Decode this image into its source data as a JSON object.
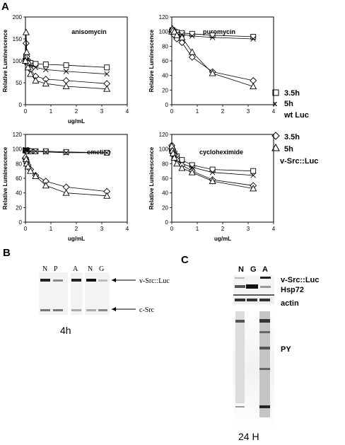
{
  "panel_labels": {
    "a": "A",
    "b": "B",
    "c": "C"
  },
  "legend": {
    "group1": {
      "sym1": "□",
      "lbl1": "3.5h",
      "sym2": "x",
      "lbl2": "5h",
      "name": "wt Luc"
    },
    "group2": {
      "sym1": "◇",
      "lbl1": "3.5h",
      "sym2": "△",
      "lbl2": "5h",
      "name": "v-Src::Luc"
    }
  },
  "colors": {
    "stroke": "#000000",
    "marker_fill": "#ffffff",
    "frame": "#000000"
  },
  "chart_data": [
    {
      "type": "line",
      "title": "anisomycin",
      "xlabel": "ug/mL",
      "ylabel": "Relative Luminescence",
      "xlim": [
        0,
        4
      ],
      "ylim": [
        0,
        200
      ],
      "xticks": [
        "0",
        "1",
        "2",
        "3",
        "4"
      ],
      "yticks": [
        "0",
        "50",
        "100",
        "150",
        "200"
      ],
      "series": [
        {
          "marker": "square",
          "x": [
            0,
            0.025,
            0.05,
            0.1,
            0.2,
            0.4,
            0.8,
            1.6,
            3.2
          ],
          "y": [
            100,
            110,
            100,
            98,
            95,
            93,
            92,
            90,
            85
          ]
        },
        {
          "marker": "x",
          "x": [
            0,
            0.025,
            0.05,
            0.1,
            0.2,
            0.4,
            0.8,
            1.6,
            3.2
          ],
          "y": [
            100,
            105,
            97,
            95,
            90,
            85,
            80,
            76,
            70
          ]
        },
        {
          "marker": "diamond",
          "x": [
            0,
            0.025,
            0.05,
            0.1,
            0.2,
            0.4,
            0.8,
            1.6,
            3.2
          ],
          "y": [
            100,
            140,
            110,
            95,
            80,
            65,
            58,
            55,
            48
          ]
        },
        {
          "marker": "triangle",
          "x": [
            0,
            0.025,
            0.05,
            0.1,
            0.2,
            0.4,
            0.8,
            1.6,
            3.2
          ],
          "y": [
            100,
            165,
            120,
            85,
            70,
            55,
            48,
            42,
            36
          ]
        }
      ]
    },
    {
      "type": "line",
      "title": "puromycin",
      "xlabel": "",
      "ylabel": "Relative Luminescence",
      "xlim": [
        0,
        4
      ],
      "ylim": [
        0,
        120
      ],
      "xticks": [
        "0",
        "1",
        "2",
        "3",
        "4"
      ],
      "yticks": [
        "0",
        "20",
        "40",
        "60",
        "80",
        "100",
        "120"
      ],
      "series": [
        {
          "marker": "square",
          "x": [
            0,
            0.025,
            0.05,
            0.1,
            0.2,
            0.4,
            0.8,
            1.6,
            3.2
          ],
          "y": [
            100,
            102,
            100,
            100,
            99,
            98,
            97,
            95,
            93
          ]
        },
        {
          "marker": "x",
          "x": [
            0,
            0.025,
            0.05,
            0.1,
            0.2,
            0.4,
            0.8,
            1.6,
            3.2
          ],
          "y": [
            100,
            100,
            99,
            98,
            97,
            96,
            94,
            92,
            90
          ]
        },
        {
          "marker": "diamond",
          "x": [
            0,
            0.025,
            0.05,
            0.1,
            0.2,
            0.4,
            0.8,
            1.6,
            3.2
          ],
          "y": [
            100,
            103,
            100,
            95,
            90,
            85,
            65,
            45,
            33
          ]
        },
        {
          "marker": "triangle",
          "x": [
            0,
            0.025,
            0.05,
            0.1,
            0.2,
            0.4,
            0.8,
            1.6,
            3.2
          ],
          "y": [
            100,
            104,
            102,
            100,
            95,
            92,
            72,
            43,
            25
          ]
        }
      ]
    },
    {
      "type": "line",
      "title": "emetine",
      "xlabel": "ug/mL",
      "ylabel": "Relative Luminescence",
      "xlim": [
        0,
        4
      ],
      "ylim": [
        0,
        120
      ],
      "xticks": [
        "0",
        "1",
        "2",
        "3",
        "4"
      ],
      "yticks": [
        "0",
        "20",
        "40",
        "60",
        "80",
        "100",
        "120"
      ],
      "series": [
        {
          "marker": "square",
          "x": [
            0,
            0.025,
            0.05,
            0.1,
            0.2,
            0.4,
            0.8,
            1.6,
            3.2
          ],
          "y": [
            98,
            98,
            98,
            97,
            97,
            97,
            97,
            96,
            95
          ]
        },
        {
          "marker": "x",
          "x": [
            0,
            0.025,
            0.05,
            0.1,
            0.2,
            0.4,
            0.8,
            1.6,
            3.2
          ],
          "y": [
            99,
            99,
            98,
            98,
            97,
            97,
            96,
            95,
            95
          ]
        },
        {
          "marker": "diamond",
          "x": [
            0,
            0.025,
            0.05,
            0.1,
            0.2,
            0.4,
            0.8,
            1.6,
            3.2
          ],
          "y": [
            88,
            85,
            82,
            78,
            72,
            64,
            56,
            48,
            42
          ]
        },
        {
          "marker": "triangle",
          "x": [
            0,
            0.025,
            0.05,
            0.1,
            0.2,
            0.4,
            0.8,
            1.6,
            3.2
          ],
          "y": [
            90,
            86,
            80,
            76,
            70,
            63,
            50,
            40,
            36
          ]
        }
      ]
    },
    {
      "type": "line",
      "title": "cycloheximide",
      "xlabel": "ug/mL",
      "ylabel": "Relative Luminescence",
      "xlim": [
        0,
        4
      ],
      "ylim": [
        0,
        120
      ],
      "xticks": [
        "0",
        "1",
        "2",
        "3",
        "4"
      ],
      "yticks": [
        "0",
        "20",
        "40",
        "60",
        "80",
        "100",
        "120"
      ],
      "series": [
        {
          "marker": "square",
          "x": [
            0,
            0.025,
            0.05,
            0.1,
            0.2,
            0.4,
            0.8,
            1.6,
            3.2
          ],
          "y": [
            100,
            98,
            96,
            94,
            90,
            85,
            78,
            72,
            70
          ]
        },
        {
          "marker": "x",
          "x": [
            0,
            0.025,
            0.05,
            0.1,
            0.2,
            0.4,
            0.8,
            1.6,
            3.2
          ],
          "y": [
            100,
            97,
            94,
            92,
            88,
            80,
            75,
            68,
            64
          ]
        },
        {
          "marker": "diamond",
          "x": [
            0,
            0.025,
            0.05,
            0.1,
            0.2,
            0.4,
            0.8,
            1.6,
            3.2
          ],
          "y": [
            105,
            100,
            95,
            92,
            85,
            78,
            70,
            58,
            50
          ]
        },
        {
          "marker": "triangle",
          "x": [
            0,
            0.025,
            0.05,
            0.1,
            0.2,
            0.4,
            0.8,
            1.6,
            3.2
          ],
          "y": [
            104,
            98,
            94,
            88,
            80,
            74,
            68,
            56,
            46
          ]
        }
      ]
    }
  ],
  "blot_b": {
    "lanes": [
      "N",
      "P",
      "A",
      "N",
      "G"
    ],
    "band_labels": [
      "v-Src::Luc",
      "c-Src"
    ],
    "time": "4h"
  },
  "blot_c": {
    "lanes": [
      "N",
      "G",
      "A"
    ],
    "row_labels": [
      "v-Src::Luc",
      "Hsp72",
      "actin",
      "PY"
    ],
    "time": "24 H"
  }
}
